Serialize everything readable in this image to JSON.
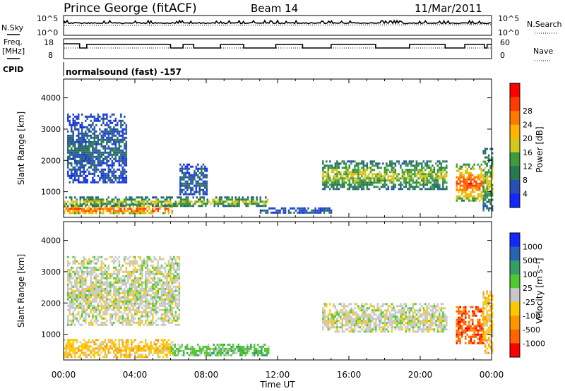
{
  "header": {
    "site": "Prince George (fitACF)",
    "beam": "Beam 14",
    "date": "11/Mar/2011"
  },
  "top_panels": {
    "nsky_label": "N.Sky",
    "nsearch_label": "N.Search",
    "noise_ticks": [
      "10^5",
      "10^0"
    ],
    "freq_label_line1": "Freq.",
    "freq_label_line2": "[MHz]",
    "freq_ticks": [
      "18",
      "8"
    ],
    "nave_label": "Nave",
    "nave_ticks": [
      "60",
      "0"
    ],
    "cpid_label": "CPID",
    "cpid_text": "normalsound (fast) -157"
  },
  "chart_data": [
    {
      "type": "heatmap",
      "name": "power",
      "title": "",
      "xlabel": "",
      "ylabel": "Slant Range [km]",
      "xlim": [
        "00:00",
        "00:00"
      ],
      "ylim": [
        180,
        4600
      ],
      "yticks": [
        1000,
        2000,
        3000,
        4000
      ],
      "colorbar": {
        "label": "Power [dB]",
        "tick_labels": [
          "4",
          "8",
          "12",
          "16",
          "20",
          "24",
          "28"
        ],
        "colors": [
          "#1428ff",
          "#2850b4",
          "#287850",
          "#3c9c3c",
          "#d2c81e",
          "#ffb400",
          "#ff7800",
          "#ff3c00",
          "#ff0000"
        ]
      },
      "regions": [
        {
          "t": [
            0.0,
            6.1
          ],
          "r": [
            300,
            620
          ],
          "level": "high"
        },
        {
          "t": [
            0.0,
            11.5
          ],
          "r": [
            550,
            850
          ],
          "level": "medium"
        },
        {
          "t": [
            0.2,
            3.5
          ],
          "r": [
            1300,
            3500
          ],
          "level": "low"
        },
        {
          "t": [
            6.5,
            8.0
          ],
          "r": [
            900,
            1900
          ],
          "level": "low"
        },
        {
          "t": [
            11.0,
            15.0
          ],
          "r": [
            300,
            500
          ],
          "level": "low"
        },
        {
          "t": [
            14.5,
            21.5
          ],
          "r": [
            1100,
            2000
          ],
          "level": "medium"
        },
        {
          "t": [
            22.0,
            23.5
          ],
          "r": [
            700,
            1900
          ],
          "level": "high"
        },
        {
          "t": [
            23.5,
            24.0
          ],
          "r": [
            400,
            2400
          ],
          "level": "medium"
        }
      ]
    },
    {
      "type": "heatmap",
      "name": "velocity",
      "title": "",
      "xlabel": "Time UT",
      "ylabel": "Slant Range [km]",
      "xticks": [
        "00:00",
        "04:00",
        "08:00",
        "12:00",
        "16:00",
        "20:00",
        "00:00"
      ],
      "ylim": [
        180,
        4600
      ],
      "yticks": [
        1000,
        2000,
        3000,
        4000
      ],
      "colorbar": {
        "label": "Velocity [m s^-1]",
        "tick_labels": [
          "1000",
          "500",
          "100",
          "25",
          "-25",
          "-100",
          "-500",
          "-1000"
        ],
        "colors": [
          "#1428ff",
          "#2864b4",
          "#32a064",
          "#50c832",
          "#c8c8c8",
          "#ffc800",
          "#ff9600",
          "#ff6400",
          "#ff0000"
        ]
      },
      "regions": [
        {
          "t": [
            0.0,
            6.1
          ],
          "r": [
            300,
            850
          ],
          "v": "-100"
        },
        {
          "t": [
            0.2,
            6.5
          ],
          "r": [
            1300,
            3500
          ],
          "v": "0"
        },
        {
          "t": [
            6.0,
            11.5
          ],
          "r": [
            300,
            700
          ],
          "v": "100"
        },
        {
          "t": [
            14.5,
            21.5
          ],
          "r": [
            1100,
            2000
          ],
          "v": "0"
        },
        {
          "t": [
            22.0,
            23.5
          ],
          "r": [
            700,
            1900
          ],
          "v": "-500"
        },
        {
          "t": [
            23.5,
            24.0
          ],
          "r": [
            400,
            2400
          ],
          "v": "-100"
        }
      ]
    }
  ]
}
